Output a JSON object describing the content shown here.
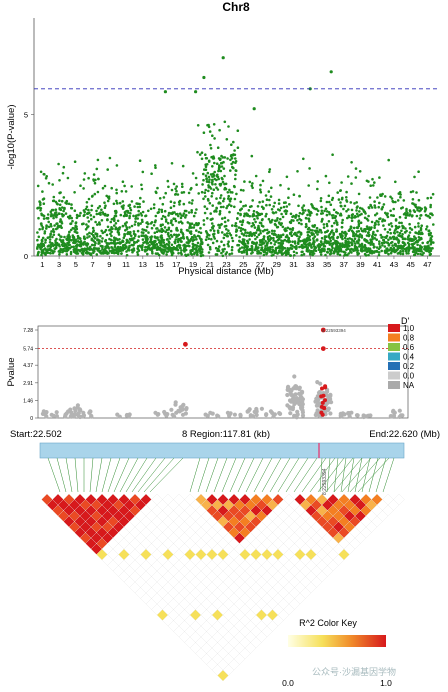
{
  "chart_data": [
    {
      "type": "scatter",
      "title": "Chr8",
      "xlabel": "Physical distance (Mb)",
      "ylabel": "-log10(P-value)",
      "x_ticks": [
        "1",
        "3",
        "5",
        "7",
        "9",
        "11",
        "13",
        "15",
        "17",
        "19",
        "21",
        "23",
        "25",
        "27",
        "29",
        "31",
        "33",
        "35",
        "37",
        "39",
        "41",
        "43",
        "45",
        "47"
      ],
      "y_ticks": [
        "0",
        "5"
      ],
      "ylim": [
        0,
        8.4
      ],
      "threshold": 5.9,
      "point_color": "#1f8c1f",
      "threshold_color": "#2b2bb8",
      "note": "",
      "series": [
        {
          "top_snps": [
            {
              "x": 15.7,
              "y": 5.8
            },
            {
              "x": 19.3,
              "y": 5.8
            },
            {
              "x": 20.3,
              "y": 6.3
            },
            {
              "x": 22.6,
              "y": 7.0
            },
            {
              "x": 26.3,
              "y": 5.2
            },
            {
              "x": 33.0,
              "y": 5.9
            },
            {
              "x": 35.5,
              "y": 6.5
            }
          ]
        }
      ]
    },
    {
      "type": "scatter",
      "ylabel": "Pvalue",
      "y_ticks": [
        "0",
        "1.46",
        "2.91",
        "4.37",
        "5.74",
        "7.28"
      ],
      "ylim": [
        0,
        7.28
      ],
      "threshold": 5.74,
      "lead_snp": "8:22593394",
      "legend_title": "D'",
      "legend_levels": [
        "1.0",
        "0.8",
        "0.6",
        "0.4",
        "0.2",
        "0.0",
        "NA"
      ],
      "legend_colors": [
        "#d7191c",
        "#f47f22",
        "#86c341",
        "#36a9c4",
        "#2470b5",
        "#cccccc",
        "#aaaaaa"
      ],
      "start_label": "Start:22.502",
      "region_label": "8 Region:117.81 (kb)",
      "end_label": "End:22.620 (Mb)",
      "highlight_points": [
        {
          "pos": 22.549,
          "p": 6.1
        },
        {
          "pos": 22.593,
          "p": 7.28
        },
        {
          "pos": 22.593,
          "p": 5.74
        }
      ]
    },
    {
      "type": "heatmap",
      "key_title": "R^2 Color Key",
      "key_min": "0.0",
      "key_max": "1.0",
      "snp_label": "8:22593394",
      "watermark": "公众号·沙漏基因学物"
    }
  ]
}
